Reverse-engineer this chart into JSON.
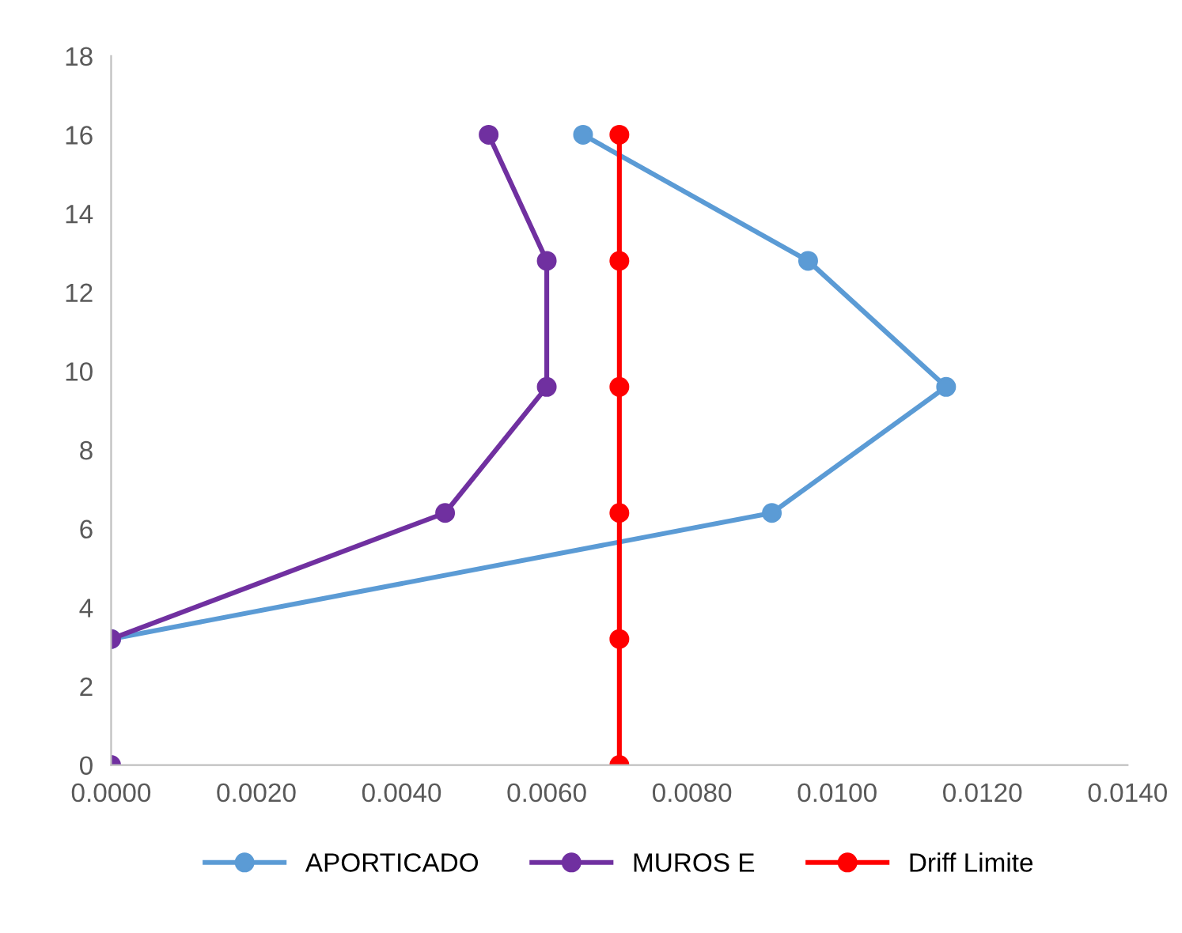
{
  "chart_data": {
    "type": "line",
    "xlim": [
      0,
      0.014
    ],
    "xticks": [
      {
        "value": 0,
        "label": "0.0000"
      },
      {
        "value": 0.002,
        "label": "0.0020"
      },
      {
        "value": 0.004,
        "label": "0.0040"
      },
      {
        "value": 0.006,
        "label": "0.0060"
      },
      {
        "value": 0.008,
        "label": "0.0080"
      },
      {
        "value": 0.01,
        "label": "0.0100"
      },
      {
        "value": 0.012,
        "label": "0.0120"
      },
      {
        "value": 0.014,
        "label": "0.0140"
      }
    ],
    "ylim": [
      0,
      18
    ],
    "yticks": [
      0,
      2,
      4,
      6,
      8,
      10,
      12,
      14,
      16,
      18
    ],
    "grid": false,
    "legend": "bottom",
    "marker": "circle",
    "line_style": "solid",
    "series": [
      {
        "name": "APORTICADO",
        "color": "#5b9bd5",
        "x": [
          0,
          0.0091,
          0.0115,
          0.0096,
          0.0065
        ],
        "values": [
          3.2,
          6.4,
          9.6,
          12.8,
          16
        ]
      },
      {
        "name": "MUROS E",
        "color": "#7030a0",
        "x": [
          0,
          null,
          0,
          0.0046,
          0.006,
          0.006,
          0.0052
        ],
        "values": [
          0,
          null,
          3.2,
          6.4,
          9.6,
          12.8,
          16
        ]
      },
      {
        "name": "Driff Limite",
        "color": "#ff0000",
        "x": [
          0.007,
          0.007,
          0.007,
          0.007,
          0.007,
          0.007
        ],
        "values": [
          0,
          3.2,
          6.4,
          9.6,
          12.8,
          16
        ]
      }
    ]
  }
}
